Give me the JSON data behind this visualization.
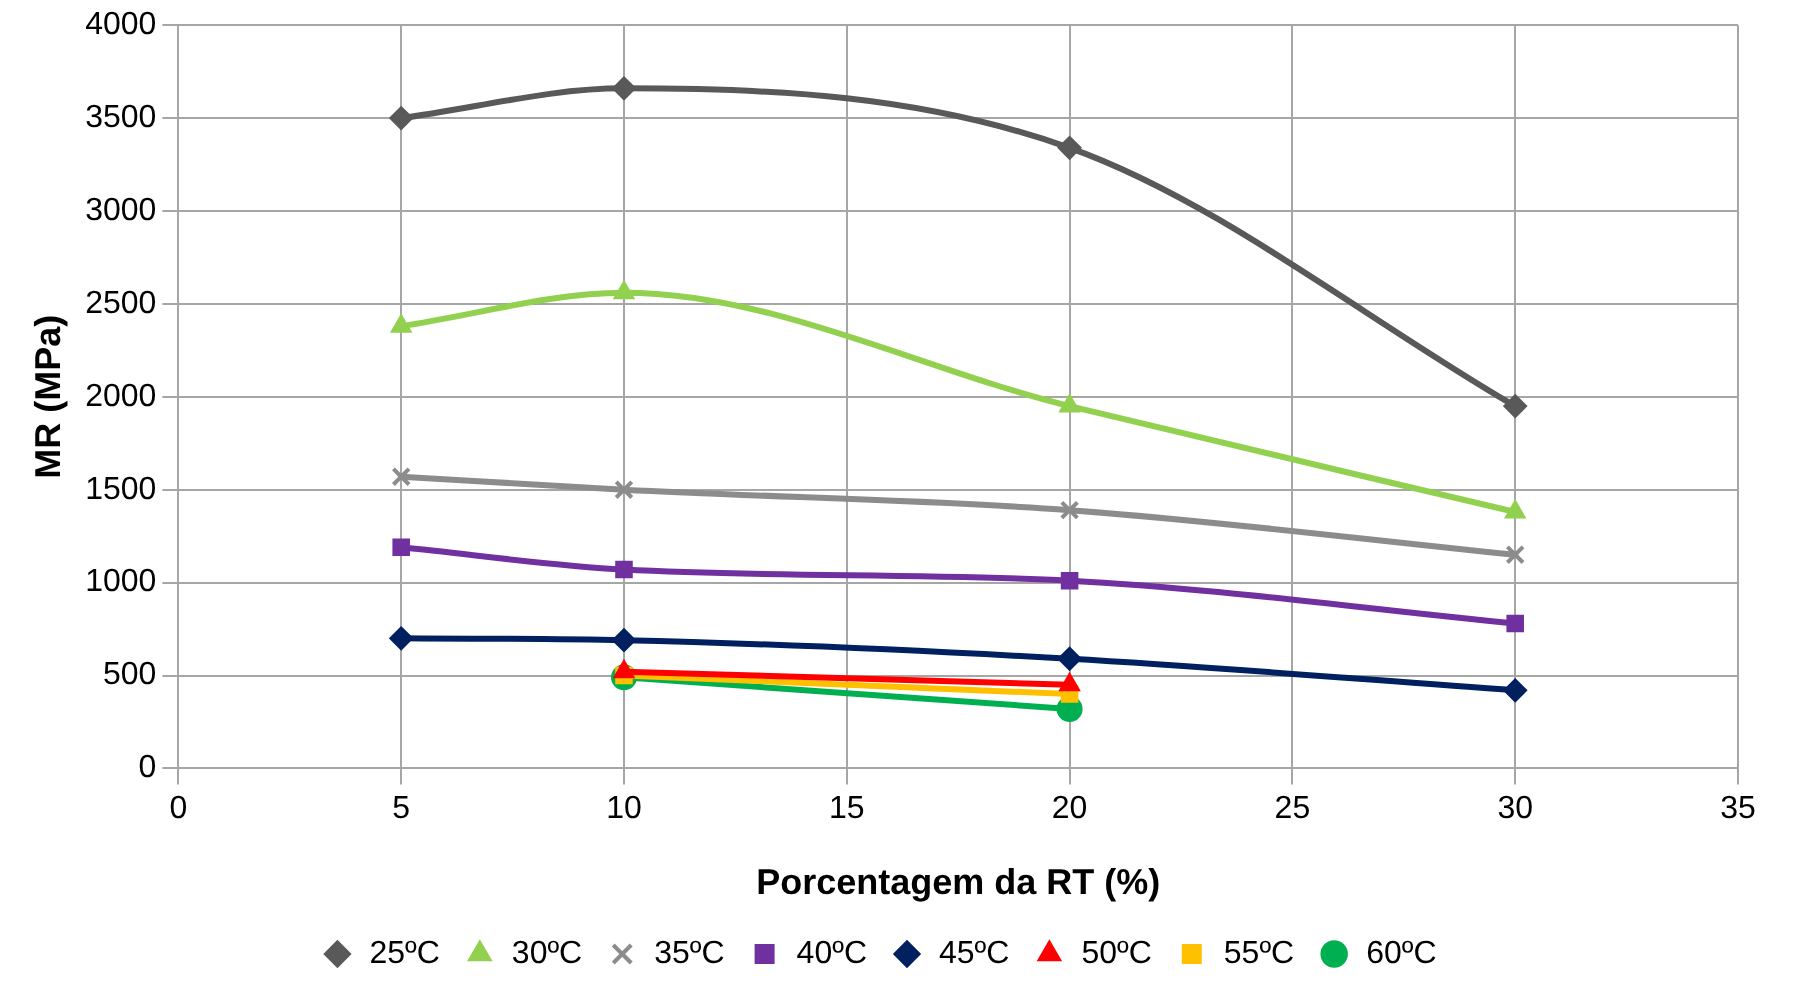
{
  "chart_data": {
    "type": "line",
    "xlabel": "Porcentagem da RT (%)",
    "ylabel": "MR (MPa)",
    "xlim": [
      0,
      35
    ],
    "xticks": [
      0,
      5,
      10,
      15,
      20,
      25,
      30,
      35
    ],
    "ylim": [
      0,
      4000
    ],
    "yticks": [
      0,
      500,
      1000,
      1500,
      2000,
      2500,
      3000,
      3500,
      4000
    ],
    "grid": true,
    "legend": "bottom",
    "line_style": "solid",
    "series": [
      {
        "name": "25ºC",
        "color": "#595959",
        "marker": "diamond",
        "x": [
          5,
          10,
          20,
          30
        ],
        "values": [
          3500,
          3660,
          3340,
          1950
        ]
      },
      {
        "name": "30ºC",
        "color": "#92d050",
        "marker": "triangle",
        "x": [
          5,
          10,
          20,
          30
        ],
        "values": [
          2380,
          2560,
          1950,
          1380
        ]
      },
      {
        "name": "35ºC",
        "color": "#8c8c8c",
        "marker": "cross",
        "x": [
          5,
          10,
          20,
          30
        ],
        "values": [
          1570,
          1500,
          1390,
          1150
        ]
      },
      {
        "name": "40ºC",
        "color": "#7030a0",
        "marker": "square",
        "x": [
          5,
          10,
          20,
          30
        ],
        "values": [
          1190,
          1070,
          1010,
          780
        ]
      },
      {
        "name": "45ºC",
        "color": "#002060",
        "marker": "diamond",
        "x": [
          5,
          10,
          20,
          30
        ],
        "values": [
          700,
          690,
          590,
          420
        ]
      },
      {
        "name": "50ºC",
        "color": "#ff0000",
        "marker": "triangle",
        "x": [
          10,
          20
        ],
        "values": [
          520,
          450
        ]
      },
      {
        "name": "55ºC",
        "color": "#ffc000",
        "marker": "square",
        "x": [
          10,
          20
        ],
        "values": [
          500,
          400
        ]
      },
      {
        "name": "60ºC",
        "color": "#00b050",
        "marker": "circle",
        "x": [
          10,
          20
        ],
        "values": [
          490,
          320
        ]
      }
    ]
  }
}
